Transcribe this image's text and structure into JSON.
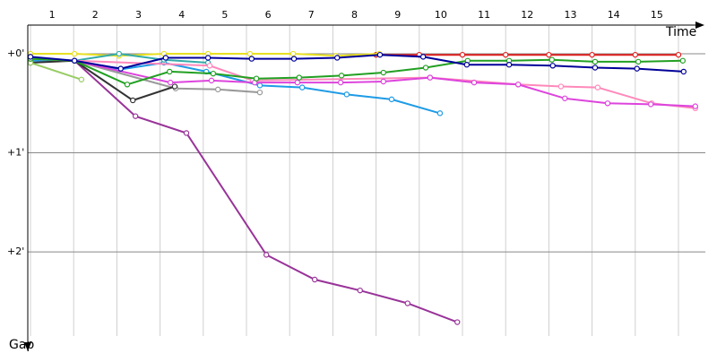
{
  "chart_data": {
    "type": "line",
    "x_label": "Time",
    "y_label": "Gap",
    "xlim": [
      0,
      15.3
    ],
    "ylim": [
      -0.29,
      2.85
    ],
    "y_inverted": true,
    "grid": true,
    "xticks": [
      {
        "value": 0.5,
        "label": "1"
      },
      {
        "value": 1.5,
        "label": "2"
      },
      {
        "value": 2.5,
        "label": "3"
      },
      {
        "value": 3.5,
        "label": "4"
      },
      {
        "value": 4.5,
        "label": "5"
      },
      {
        "value": 5.5,
        "label": "6"
      },
      {
        "value": 6.5,
        "label": "7"
      },
      {
        "value": 7.5,
        "label": "8"
      },
      {
        "value": 8.5,
        "label": "9"
      },
      {
        "value": 9.5,
        "label": "10"
      },
      {
        "value": 10.5,
        "label": "11"
      },
      {
        "value": 11.5,
        "label": "12"
      },
      {
        "value": 12.5,
        "label": "13"
      },
      {
        "value": 13.5,
        "label": "14"
      },
      {
        "value": 14.5,
        "label": "15"
      }
    ],
    "yticks": [
      {
        "value": 0,
        "label": "+0'"
      },
      {
        "value": 1,
        "label": "+1'"
      },
      {
        "value": 2,
        "label": "+2'"
      }
    ],
    "series": [
      {
        "color": "#e02020",
        "x": [
          8,
          9,
          10,
          11,
          12,
          13,
          14,
          15
        ],
        "values": [
          0.01,
          0.01,
          0.01,
          0.01,
          0.01,
          0.01,
          0.01,
          0.01
        ]
      },
      {
        "color": "#e8e020",
        "x": [
          0,
          1.02,
          2.05,
          3.09,
          4.11,
          5.08,
          6.08,
          7.07,
          8.07
        ],
        "values": [
          0,
          0,
          0.02,
          0,
          0,
          0,
          0,
          0.02,
          0
        ]
      },
      {
        "color": "#993399",
        "x": [
          0,
          1.02,
          2.43,
          3.61,
          5.46,
          6.58,
          7.63,
          8.73,
          9.88
        ],
        "values": [
          0.05,
          0.07,
          0.63,
          0.8,
          2.03,
          2.28,
          2.39,
          2.52,
          2.71
        ]
      },
      {
        "color": "#1e9be6",
        "x": [
          0,
          1.02,
          2.05,
          3.09,
          4.07,
          5.31,
          6.29,
          7.32,
          8.36,
          9.48
        ],
        "values": [
          0.07,
          0.07,
          0.16,
          0.09,
          0.18,
          0.32,
          0.34,
          0.41,
          0.46,
          0.6
        ]
      },
      {
        "color": "#999999",
        "x": [
          1.02,
          3.36,
          4.34,
          5.31
        ],
        "values": [
          0.07,
          0.35,
          0.36,
          0.39
        ]
      },
      {
        "color": "#333333",
        "x": [
          0,
          1.02,
          2.37,
          3.34
        ],
        "values": [
          0.09,
          0.07,
          0.47,
          0.33
        ]
      },
      {
        "color": "#99cc66",
        "x": [
          0,
          1.18
        ],
        "values": [
          0.09,
          0.26
        ]
      },
      {
        "color": "#33aaaa",
        "x": [
          0,
          1.02,
          2.05,
          3.09,
          4.11
        ],
        "values": [
          0.05,
          0.07,
          0,
          0.06,
          0.09
        ]
      },
      {
        "color": "#ff88bb",
        "x": [
          0,
          1.02,
          4.15,
          5.15,
          9.25,
          11.29,
          12.28,
          13.13,
          14.38,
          15.39
        ],
        "values": [
          0.05,
          0.07,
          0.12,
          0.27,
          0.24,
          0.31,
          0.33,
          0.34,
          0.5,
          0.55
        ]
      },
      {
        "color": "#dd44dd",
        "x": [
          1.02,
          3.24,
          4.19,
          5.19,
          6.18,
          7.18,
          8.17,
          9.25,
          10.27,
          11.29,
          12.37,
          13.36,
          14.36,
          15.39
        ],
        "values": [
          0.07,
          0.29,
          0.27,
          0.29,
          0.29,
          0.29,
          0.28,
          0.24,
          0.29,
          0.31,
          0.45,
          0.5,
          0.51,
          0.53
        ]
      },
      {
        "color": "#22a022",
        "x": [
          0,
          1.02,
          2.24,
          3.22,
          4.23,
          5.23,
          6.22,
          7.2,
          8.17,
          9.15,
          10.12,
          11.08,
          12.07,
          13.07,
          14.07,
          15.1
        ],
        "values": [
          0.05,
          0.07,
          0.31,
          0.18,
          0.2,
          0.25,
          0.24,
          0.22,
          0.19,
          0.14,
          0.07,
          0.07,
          0.06,
          0.08,
          0.08,
          0.07
        ]
      },
      {
        "color": "#000099",
        "x": [
          0,
          1.02,
          2.09,
          3.13,
          4.11,
          5.12,
          6.1,
          7.1,
          8.09,
          9.09,
          10.1,
          11.08,
          12.09,
          13.07,
          14.04,
          15.12
        ],
        "values": [
          0.03,
          0.07,
          0.15,
          0.04,
          0.04,
          0.05,
          0.05,
          0.04,
          0.01,
          0.03,
          0.11,
          0.11,
          0.12,
          0.14,
          0.15,
          0.18
        ]
      }
    ]
  }
}
